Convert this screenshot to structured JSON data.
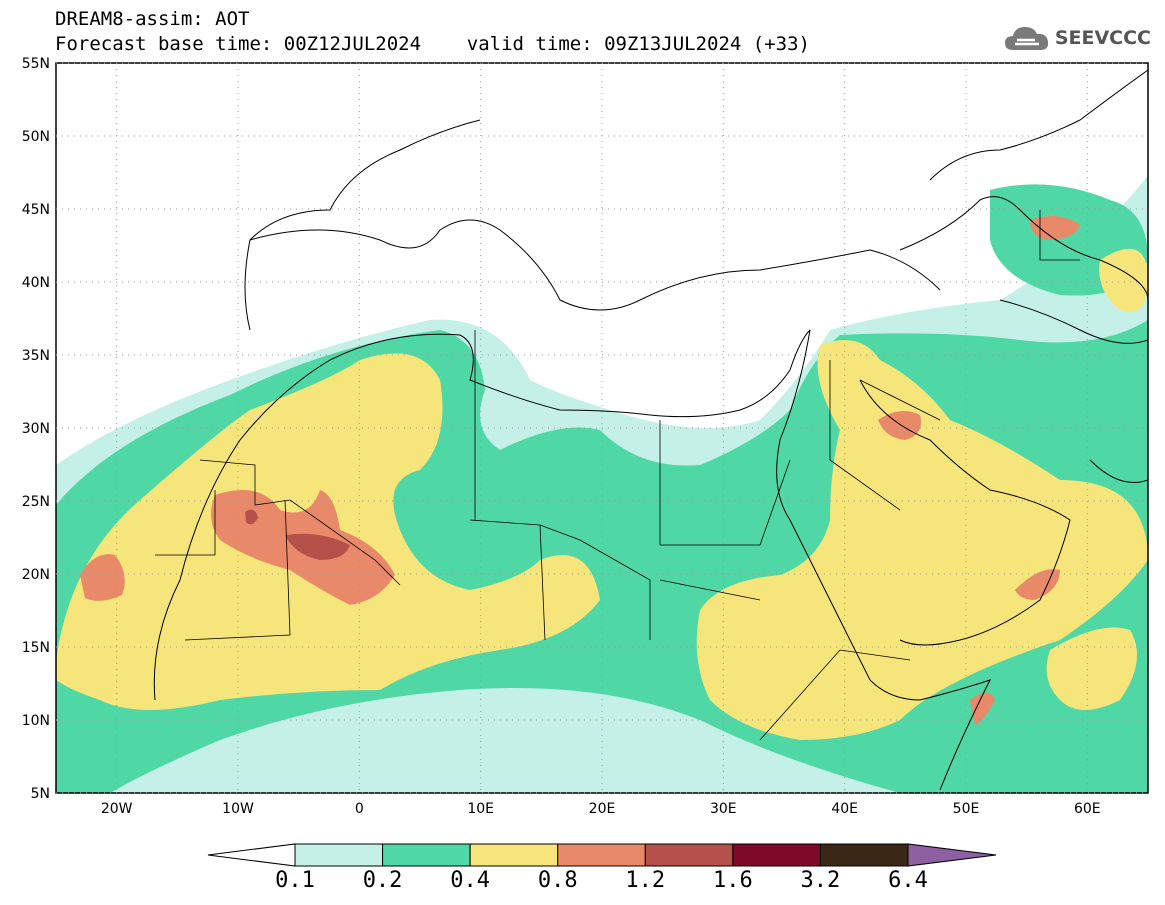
{
  "title": {
    "line1": "DREAM8-assim: AOT",
    "line2": "Forecast base time: 00Z12JUL2024    valid time: 09Z13JUL2024 (+33)"
  },
  "logo": {
    "text": "SEEVCCC",
    "icon": "cloud-icon"
  },
  "map": {
    "lat_labels": [
      "55N",
      "50N",
      "45N",
      "40N",
      "35N",
      "30N",
      "25N",
      "20N",
      "15N",
      "10N",
      "5N"
    ],
    "lon_labels": [
      "20W",
      "10W",
      "0",
      "10E",
      "20E",
      "30E",
      "40E",
      "50E",
      "60E"
    ],
    "lon_range": [
      -25,
      65
    ],
    "lat_range": [
      5,
      55
    ],
    "grid": "dotted"
  },
  "colorbar": {
    "labels": [
      "0.1",
      "0.2",
      "0.4",
      "0.8",
      "1.2",
      "1.6",
      "3.2",
      "6.4"
    ],
    "colors": [
      "#c4f0e8",
      "#4fd7a5",
      "#f6e57a",
      "#e8896a",
      "#b5514a",
      "#7e0a27",
      "#3b2716",
      "#8e5fa1"
    ]
  }
}
